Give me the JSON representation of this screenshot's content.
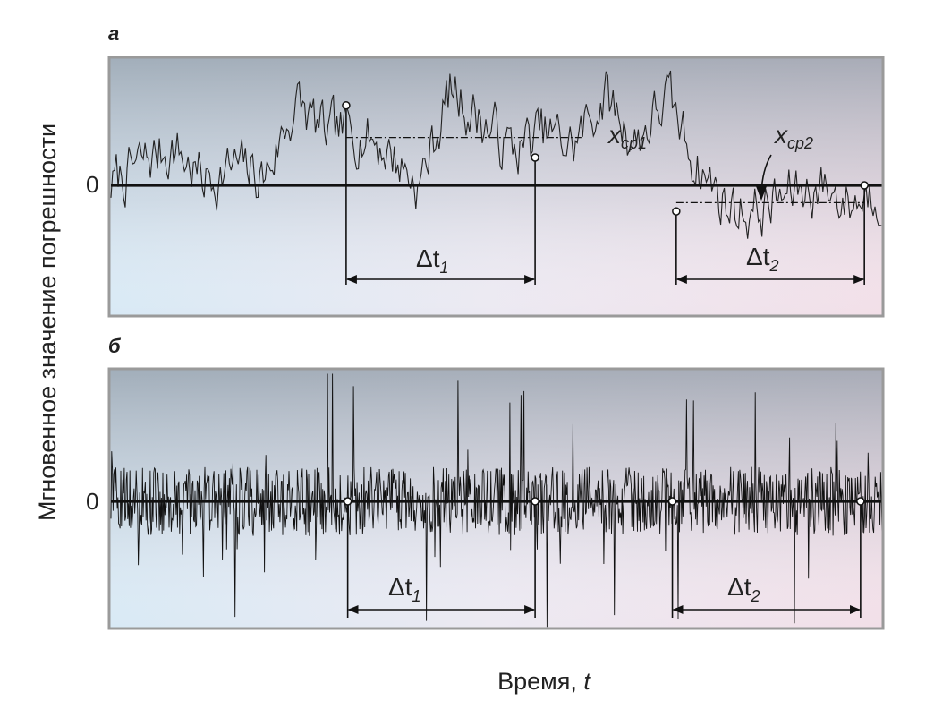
{
  "figure": {
    "ylabel": "Мгновенное значение погрешности",
    "xlabel_text": "Время, ",
    "xlabel_var": "t"
  },
  "chart_data": [
    {
      "type": "line",
      "panel_label": "а",
      "description_kind": "slowly varying (low-frequency) random error",
      "zero_label": "0",
      "x": [
        0,
        4,
        8,
        12,
        16,
        20,
        24,
        28,
        32,
        36,
        40,
        44,
        48,
        52,
        56,
        60,
        64,
        68,
        72,
        76,
        80,
        84,
        88,
        92,
        96,
        100
      ],
      "values": [
        0,
        0.25,
        0.45,
        0.05,
        0.2,
        0.1,
        0.95,
        0.55,
        0.65,
        0.4,
        0.0,
        1.1,
        0.75,
        0.4,
        0.6,
        0.45,
        1.05,
        0.5,
        1.0,
        0.25,
        -0.25,
        -0.3,
        -0.1,
        0.0,
        -0.2,
        0.0
      ],
      "intervals": [
        {
          "label": "Δt",
          "index": "1",
          "start": 30.5,
          "end": 55.0
        },
        {
          "label": "Δt",
          "index": "2",
          "start": 73.3,
          "end": 97.7
        }
      ],
      "means": [
        {
          "label": "x",
          "index": "ср1",
          "value": 0.55
        },
        {
          "label": "x",
          "index": "ср2",
          "value": -0.2
        }
      ],
      "ylim": [
        -1.6,
        1.3
      ]
    },
    {
      "type": "line",
      "panel_label": "б",
      "description_kind": "rapidly varying (high-frequency) random error",
      "zero_label": "0",
      "amplitude_typical": 0.35,
      "amplitude_peak": 1.3,
      "intervals": [
        {
          "label": "Δt",
          "index": "1",
          "start": 30.7,
          "end": 55.0
        },
        {
          "label": "Δt",
          "index": "2",
          "start": 72.8,
          "end": 97.2
        }
      ],
      "ylim": [
        -1.1,
        1.3
      ]
    }
  ]
}
